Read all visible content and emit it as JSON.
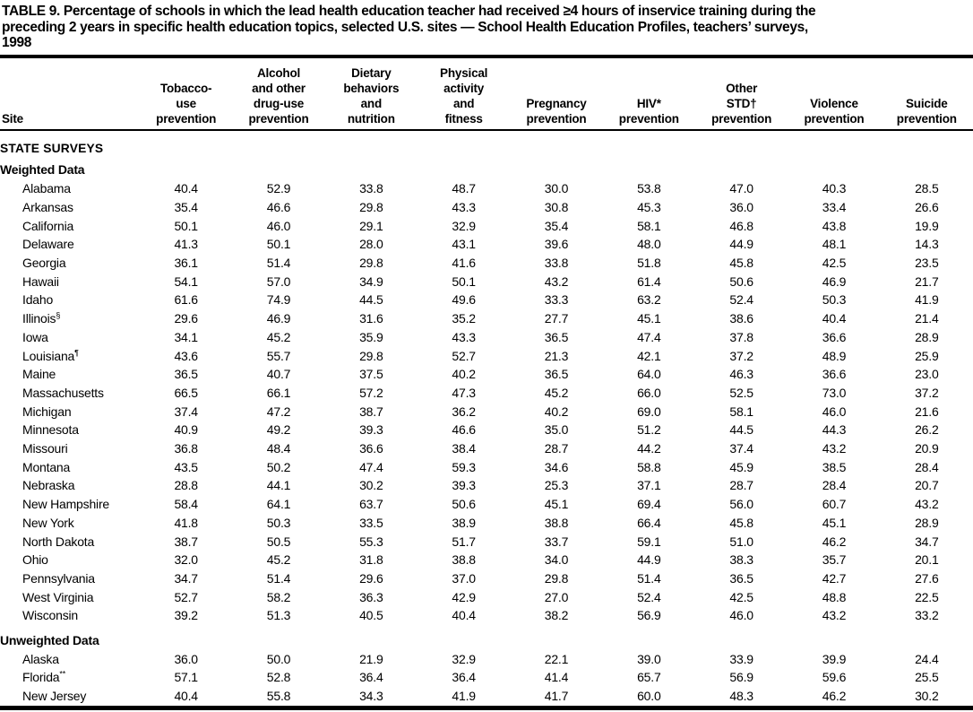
{
  "title": "TABLE 9. Percentage of schools in which the lead health education teacher had received ≥4 hours of inservice training during the\npreceding 2 years in specific health education topics, selected U.S. sites — School Health Education Profiles, teachers’ surveys,\n1998",
  "table": {
    "site_header": "Site",
    "columns": [
      {
        "name": "tobacco-use-prevention",
        "lines": [
          "Tobacco-",
          "use",
          "prevention"
        ]
      },
      {
        "name": "alcohol-drug-use-prevention",
        "lines": [
          "Alcohol",
          "and other",
          "drug-use",
          "prevention"
        ]
      },
      {
        "name": "dietary-behaviors-nutrition",
        "lines": [
          "Dietary",
          "behaviors",
          "and",
          "nutrition"
        ]
      },
      {
        "name": "physical-activity-fitness",
        "lines": [
          "Physical",
          "activity",
          "and",
          "fitness"
        ]
      },
      {
        "name": "pregnancy-prevention",
        "lines": [
          "Pregnancy",
          "prevention"
        ]
      },
      {
        "name": "hiv-prevention",
        "lines": [
          "HIV*",
          "prevention"
        ]
      },
      {
        "name": "other-std-prevention",
        "lines": [
          "Other",
          "STD†",
          "prevention"
        ]
      },
      {
        "name": "violence-prevention",
        "lines": [
          "Violence",
          "prevention"
        ]
      },
      {
        "name": "suicide-prevention",
        "lines": [
          "Suicide",
          "prevention"
        ]
      }
    ],
    "groups": [
      {
        "label": "STATE SURVEYS",
        "style": "section",
        "rows": []
      },
      {
        "label": "Weighted Data",
        "style": "subsection",
        "rows": [
          {
            "site": "Alabama",
            "marker": "",
            "values": [
              "40.4",
              "52.9",
              "33.8",
              "48.7",
              "30.0",
              "53.8",
              "47.0",
              "40.3",
              "28.5"
            ]
          },
          {
            "site": "Arkansas",
            "marker": "",
            "values": [
              "35.4",
              "46.6",
              "29.8",
              "43.3",
              "30.8",
              "45.3",
              "36.0",
              "33.4",
              "26.6"
            ]
          },
          {
            "site": "California",
            "marker": "",
            "values": [
              "50.1",
              "46.0",
              "29.1",
              "32.9",
              "35.4",
              "58.1",
              "46.8",
              "43.8",
              "19.9"
            ]
          },
          {
            "site": "Delaware",
            "marker": "",
            "values": [
              "41.3",
              "50.1",
              "28.0",
              "43.1",
              "39.6",
              "48.0",
              "44.9",
              "48.1",
              "14.3"
            ]
          },
          {
            "site": "Georgia",
            "marker": "",
            "values": [
              "36.1",
              "51.4",
              "29.8",
              "41.6",
              "33.8",
              "51.8",
              "45.8",
              "42.5",
              "23.5"
            ]
          },
          {
            "site": "Hawaii",
            "marker": "",
            "values": [
              "54.1",
              "57.0",
              "34.9",
              "50.1",
              "43.2",
              "61.4",
              "50.6",
              "46.9",
              "21.7"
            ]
          },
          {
            "site": "Idaho",
            "marker": "",
            "values": [
              "61.6",
              "74.9",
              "44.5",
              "49.6",
              "33.3",
              "63.2",
              "52.4",
              "50.3",
              "41.9"
            ]
          },
          {
            "site": "Illinois",
            "marker": "§",
            "values": [
              "29.6",
              "46.9",
              "31.6",
              "35.2",
              "27.7",
              "45.1",
              "38.6",
              "40.4",
              "21.4"
            ]
          },
          {
            "site": "Iowa",
            "marker": "",
            "values": [
              "34.1",
              "45.2",
              "35.9",
              "43.3",
              "36.5",
              "47.4",
              "37.8",
              "36.6",
              "28.9"
            ]
          },
          {
            "site": "Louisiana",
            "marker": "¶",
            "values": [
              "43.6",
              "55.7",
              "29.8",
              "52.7",
              "21.3",
              "42.1",
              "37.2",
              "48.9",
              "25.9"
            ]
          },
          {
            "site": "Maine",
            "marker": "",
            "values": [
              "36.5",
              "40.7",
              "37.5",
              "40.2",
              "36.5",
              "64.0",
              "46.3",
              "36.6",
              "23.0"
            ]
          },
          {
            "site": "Massachusetts",
            "marker": "",
            "values": [
              "66.5",
              "66.1",
              "57.2",
              "47.3",
              "45.2",
              "66.0",
              "52.5",
              "73.0",
              "37.2"
            ]
          },
          {
            "site": "Michigan",
            "marker": "",
            "values": [
              "37.4",
              "47.2",
              "38.7",
              "36.2",
              "40.2",
              "69.0",
              "58.1",
              "46.0",
              "21.6"
            ]
          },
          {
            "site": "Minnesota",
            "marker": "",
            "values": [
              "40.9",
              "49.2",
              "39.3",
              "46.6",
              "35.0",
              "51.2",
              "44.5",
              "44.3",
              "26.2"
            ]
          },
          {
            "site": "Missouri",
            "marker": "",
            "values": [
              "36.8",
              "48.4",
              "36.6",
              "38.4",
              "28.7",
              "44.2",
              "37.4",
              "43.2",
              "20.9"
            ]
          },
          {
            "site": "Montana",
            "marker": "",
            "values": [
              "43.5",
              "50.2",
              "47.4",
              "59.3",
              "34.6",
              "58.8",
              "45.9",
              "38.5",
              "28.4"
            ]
          },
          {
            "site": "Nebraska",
            "marker": "",
            "values": [
              "28.8",
              "44.1",
              "30.2",
              "39.3",
              "25.3",
              "37.1",
              "28.7",
              "28.4",
              "20.7"
            ]
          },
          {
            "site": "New Hampshire",
            "marker": "",
            "values": [
              "58.4",
              "64.1",
              "63.7",
              "50.6",
              "45.1",
              "69.4",
              "56.0",
              "60.7",
              "43.2"
            ]
          },
          {
            "site": "New York",
            "marker": "",
            "values": [
              "41.8",
              "50.3",
              "33.5",
              "38.9",
              "38.8",
              "66.4",
              "45.8",
              "45.1",
              "28.9"
            ]
          },
          {
            "site": "North Dakota",
            "marker": "",
            "values": [
              "38.7",
              "50.5",
              "55.3",
              "51.7",
              "33.7",
              "59.1",
              "51.0",
              "46.2",
              "34.7"
            ]
          },
          {
            "site": "Ohio",
            "marker": "",
            "values": [
              "32.0",
              "45.2",
              "31.8",
              "38.8",
              "34.0",
              "44.9",
              "38.3",
              "35.7",
              "20.1"
            ]
          },
          {
            "site": "Pennsylvania",
            "marker": "",
            "values": [
              "34.7",
              "51.4",
              "29.6",
              "37.0",
              "29.8",
              "51.4",
              "36.5",
              "42.7",
              "27.6"
            ]
          },
          {
            "site": "West Virginia",
            "marker": "",
            "values": [
              "52.7",
              "58.2",
              "36.3",
              "42.9",
              "27.0",
              "52.4",
              "42.5",
              "48.8",
              "22.5"
            ]
          },
          {
            "site": "Wisconsin",
            "marker": "",
            "values": [
              "39.2",
              "51.3",
              "40.5",
              "40.4",
              "38.2",
              "56.9",
              "46.0",
              "43.2",
              "33.2"
            ]
          }
        ]
      },
      {
        "label": "Unweighted Data",
        "style": "subsection",
        "rows": [
          {
            "site": "Alaska",
            "marker": "",
            "values": [
              "36.0",
              "50.0",
              "21.9",
              "32.9",
              "22.1",
              "39.0",
              "33.9",
              "39.9",
              "24.4"
            ]
          },
          {
            "site": "Florida",
            "marker": "**",
            "values": [
              "57.1",
              "52.8",
              "36.4",
              "36.4",
              "41.4",
              "65.7",
              "56.9",
              "59.6",
              "25.5"
            ]
          },
          {
            "site": "New Jersey",
            "marker": "",
            "values": [
              "40.4",
              "55.8",
              "34.3",
              "41.9",
              "41.7",
              "60.0",
              "48.3",
              "46.2",
              "30.2"
            ]
          }
        ]
      }
    ]
  }
}
